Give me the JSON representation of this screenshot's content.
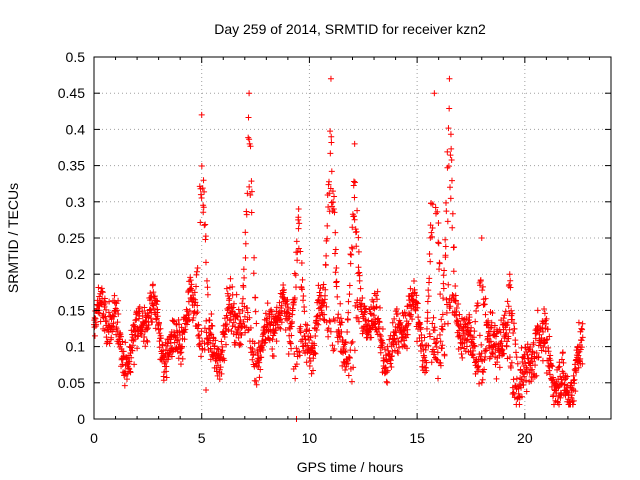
{
  "chart_data": {
    "type": "scatter",
    "title": "Day 259 of 2014, SRMTID for receiver kzn2",
    "xlabel": "GPS time / hours",
    "ylabel": "SRMTID / TECUs",
    "xlim": [
      0,
      24
    ],
    "ylim": [
      0,
      0.5
    ],
    "xticks": [
      0,
      5,
      10,
      15,
      20
    ],
    "xtick_labels": [
      "0",
      "5",
      "10",
      "15",
      "20"
    ],
    "yticks": [
      0,
      0.05,
      0.1,
      0.15,
      0.2,
      0.25,
      0.3,
      0.35,
      0.4,
      0.45,
      0.5
    ],
    "ytick_labels": [
      "0",
      "0.05",
      "0.1",
      "0.15",
      "0.2",
      "0.25",
      "0.3",
      "0.35",
      "0.4",
      "0.45",
      "0.5"
    ],
    "grid": true,
    "marker": "+",
    "color": "#ff0000",
    "series": [
      {
        "name": "SRMTID",
        "x_range": [
          0,
          22.7
        ],
        "point_count_approx": 2000,
        "baseline_level": 0.12,
        "typical_spread": [
          0.05,
          0.22
        ],
        "peaks": [
          {
            "x": 5.0,
            "y": 0.42
          },
          {
            "x": 7.2,
            "y": 0.45
          },
          {
            "x": 9.5,
            "y": 0.29
          },
          {
            "x": 11.0,
            "y": 0.47
          },
          {
            "x": 12.1,
            "y": 0.38
          },
          {
            "x": 15.8,
            "y": 0.45
          },
          {
            "x": 16.5,
            "y": 0.47
          },
          {
            "x": 18.0,
            "y": 0.25
          },
          {
            "x": 19.3,
            "y": 0.2
          },
          {
            "x": 20.6,
            "y": 0.15
          }
        ],
        "outliers": [
          {
            "x": 5.2,
            "y": 0.04
          },
          {
            "x": 9.4,
            "y": 0.0
          }
        ]
      }
    ]
  }
}
